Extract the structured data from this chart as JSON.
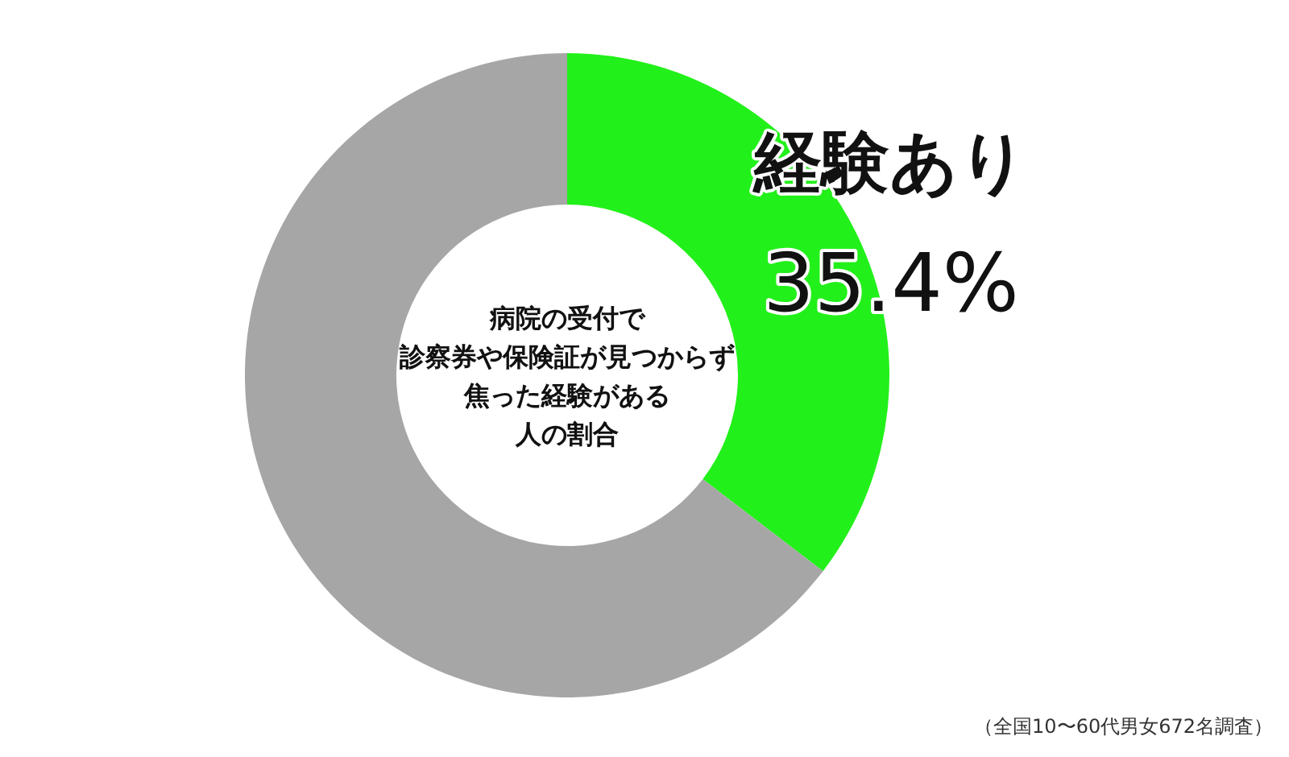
{
  "chart_data": {
    "type": "donut",
    "title": "病院の受付で診察券や保険証が見つからず焦った経験がある人の割合",
    "categories": [
      "経験あり",
      null
    ],
    "values": [
      35.4,
      64.6
    ],
    "colors": [
      "#22f01a",
      "#a6a6a6"
    ],
    "value_labels": [
      "35.4%",
      null
    ],
    "annotations": [
      "（全国10〜60代男女672名調査）"
    ]
  }
}
